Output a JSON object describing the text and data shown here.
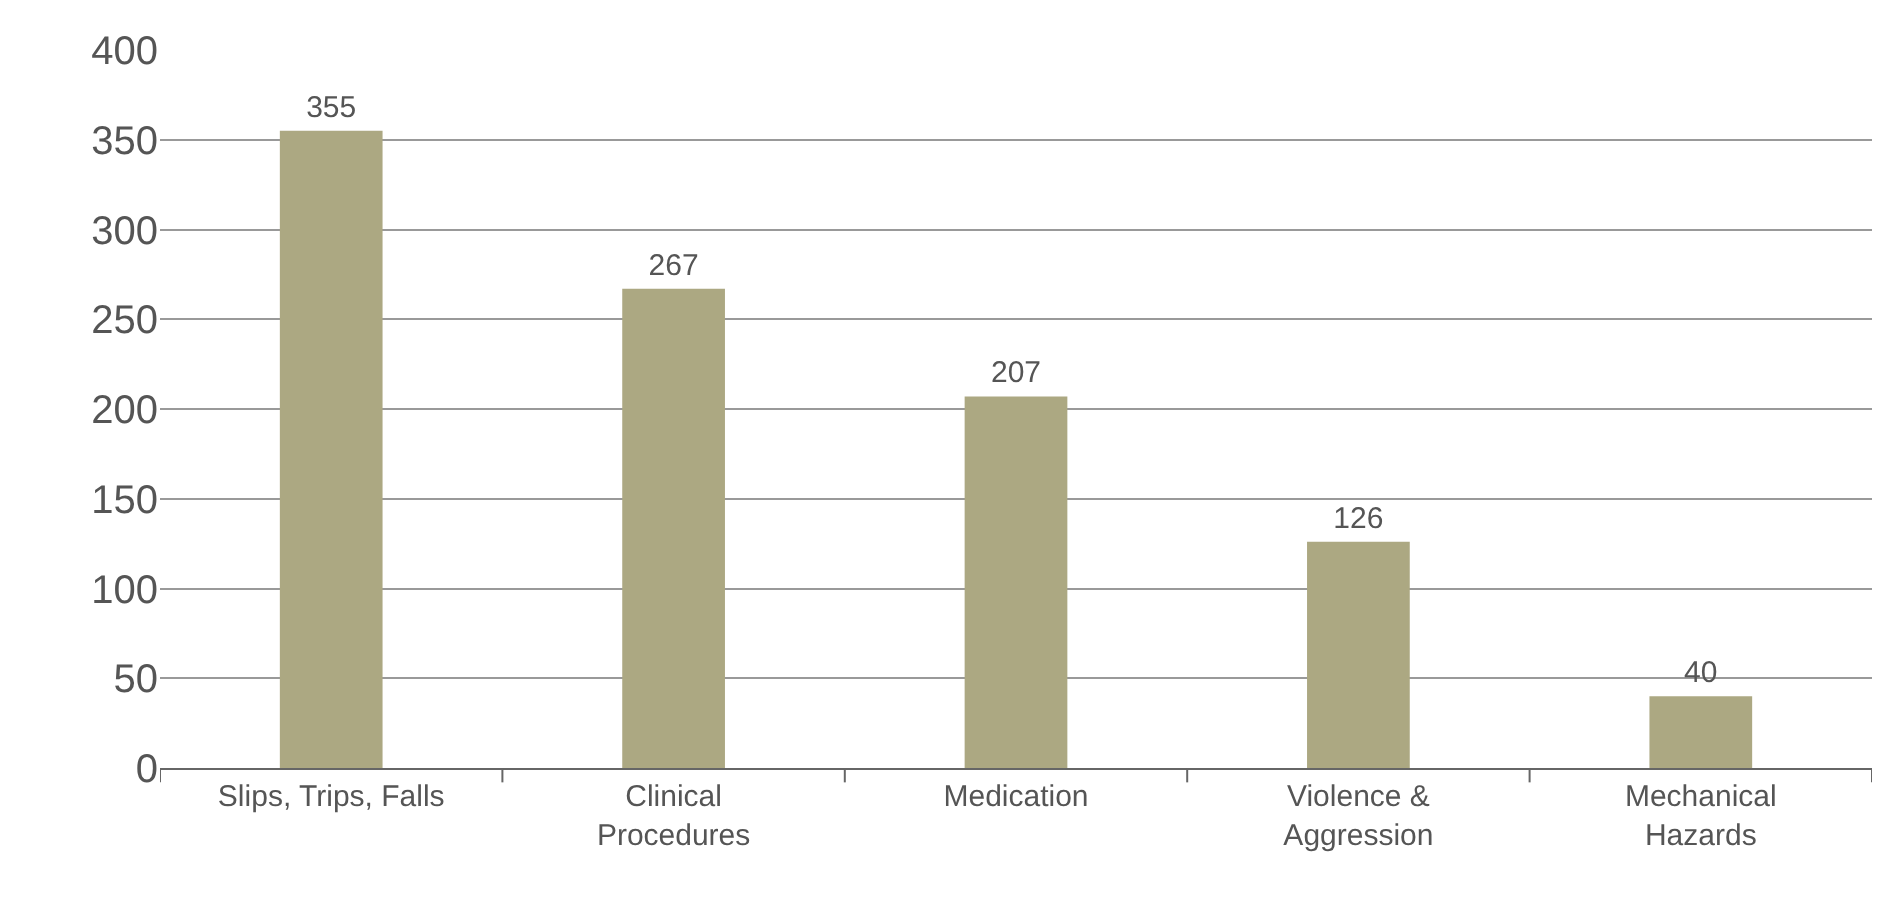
{
  "chart_data": {
    "type": "bar",
    "categories": [
      "Slips, Trips, Falls",
      "Clinical Procedures",
      "Medication",
      "Violence & Aggression",
      "Mechanical Hazards"
    ],
    "values": [
      355,
      267,
      207,
      126,
      40
    ],
    "color": "#aca882",
    "ylim": [
      0,
      400
    ],
    "yticks": [
      0,
      50,
      100,
      150,
      200,
      250,
      300,
      350,
      400
    ],
    "grid": "y",
    "data_labels": true
  }
}
